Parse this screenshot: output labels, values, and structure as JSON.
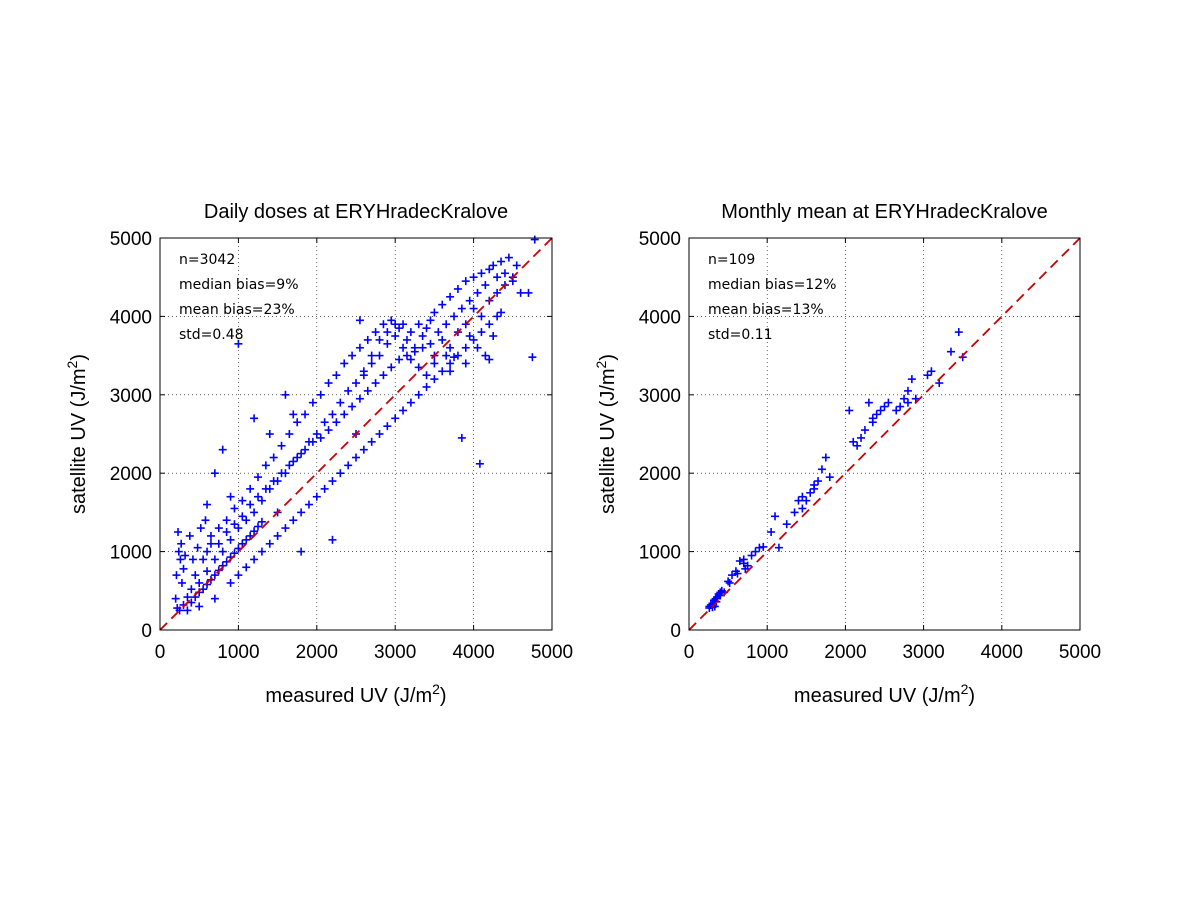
{
  "chart_data": [
    {
      "type": "scatter",
      "title": "Daily doses at ERYHradecKralove",
      "xlabel": "measured UV (J/m",
      "ylabel": "satellite UV (J/m",
      "label_superscript": "2",
      "label_close": ")",
      "xlim": [
        0,
        5000
      ],
      "ylim": [
        0,
        5000
      ],
      "xticks": [
        "0",
        "1000",
        "2000",
        "3000",
        "4000",
        "5000"
      ],
      "yticks": [
        "0",
        "1000",
        "2000",
        "3000",
        "4000",
        "5000"
      ],
      "grid": true,
      "marker": "+",
      "marker_color": "#0000ff",
      "reference_line": {
        "style": "dashed",
        "color": "#cc0000",
        "from": [
          0,
          0
        ],
        "to": [
          5000,
          5000
        ]
      },
      "stats": [
        "n=3042",
        "median bias=9%",
        "mean bias=23%",
        "std=0.48"
      ],
      "points": [
        [
          250,
          250
        ],
        [
          300,
          320
        ],
        [
          220,
          280
        ],
        [
          350,
          420
        ],
        [
          280,
          600
        ],
        [
          260,
          900
        ],
        [
          230,
          1250
        ],
        [
          300,
          780
        ],
        [
          400,
          520
        ],
        [
          450,
          700
        ],
        [
          500,
          600
        ],
        [
          550,
          900
        ],
        [
          600,
          750
        ],
        [
          650,
          1100
        ],
        [
          700,
          900
        ],
        [
          750,
          1300
        ],
        [
          800,
          1000
        ],
        [
          850,
          1400
        ],
        [
          900,
          1150
        ],
        [
          950,
          1550
        ],
        [
          1000,
          1300
        ],
        [
          1050,
          1650
        ],
        [
          1100,
          1400
        ],
        [
          1150,
          1800
        ],
        [
          1200,
          1500
        ],
        [
          1250,
          1950
        ],
        [
          1300,
          1650
        ],
        [
          1350,
          2100
        ],
        [
          1400,
          1800
        ],
        [
          1450,
          2200
        ],
        [
          1500,
          1900
        ],
        [
          1550,
          2350
        ],
        [
          1600,
          2000
        ],
        [
          1650,
          2500
        ],
        [
          1700,
          2150
        ],
        [
          1750,
          2650
        ],
        [
          1800,
          2250
        ],
        [
          1850,
          2750
        ],
        [
          1900,
          2400
        ],
        [
          1950,
          2900
        ],
        [
          2000,
          2500
        ],
        [
          2050,
          3000
        ],
        [
          2100,
          2650
        ],
        [
          2150,
          3150
        ],
        [
          2200,
          2750
        ],
        [
          2250,
          3250
        ],
        [
          2300,
          2900
        ],
        [
          2350,
          3400
        ],
        [
          2400,
          3050
        ],
        [
          2450,
          3500
        ],
        [
          2500,
          3150
        ],
        [
          2550,
          3600
        ],
        [
          2600,
          3250
        ],
        [
          2650,
          3700
        ],
        [
          2700,
          3400
        ],
        [
          2750,
          3800
        ],
        [
          2800,
          3500
        ],
        [
          2850,
          3900
        ],
        [
          2900,
          3650
        ],
        [
          2950,
          3950
        ],
        [
          3000,
          3750
        ],
        [
          3050,
          3850
        ],
        [
          3100,
          3900
        ],
        [
          3150,
          3700
        ],
        [
          3200,
          3800
        ],
        [
          3250,
          3600
        ],
        [
          3300,
          3900
        ],
        [
          3350,
          3750
        ],
        [
          3400,
          3850
        ],
        [
          3450,
          3950
        ],
        [
          3500,
          4050
        ],
        [
          3550,
          3800
        ],
        [
          3600,
          4150
        ],
        [
          3650,
          3900
        ],
        [
          3700,
          4250
        ],
        [
          3750,
          4000
        ],
        [
          3800,
          4350
        ],
        [
          3850,
          4100
        ],
        [
          3900,
          4450
        ],
        [
          3950,
          4200
        ],
        [
          4000,
          4500
        ],
        [
          4050,
          4300
        ],
        [
          4100,
          4550
        ],
        [
          4150,
          4400
        ],
        [
          4200,
          4600
        ],
        [
          4250,
          4650
        ],
        [
          4300,
          4500
        ],
        [
          4350,
          4700
        ],
        [
          4400,
          4550
        ],
        [
          4450,
          4750
        ],
        [
          4500,
          4450
        ],
        [
          4550,
          4650
        ],
        [
          4600,
          4300
        ],
        [
          4700,
          4300
        ],
        [
          4780,
          4980
        ],
        [
          4750,
          3480
        ],
        [
          4080,
          2120
        ],
        [
          3850,
          2450
        ],
        [
          2550,
          3950
        ],
        [
          1000,
          3650
        ],
        [
          600,
          1600
        ],
        [
          700,
          2000
        ],
        [
          800,
          2300
        ],
        [
          900,
          1700
        ],
        [
          1200,
          2700
        ],
        [
          1400,
          2500
        ],
        [
          1600,
          3000
        ],
        [
          1700,
          2750
        ],
        [
          1800,
          1000
        ],
        [
          2200,
          1150
        ],
        [
          1000,
          700
        ],
        [
          1200,
          900
        ],
        [
          1400,
          1100
        ],
        [
          1600,
          1300
        ],
        [
          1800,
          1500
        ],
        [
          2000,
          1700
        ],
        [
          2200,
          1900
        ],
        [
          2400,
          2100
        ],
        [
          2600,
          2300
        ],
        [
          2800,
          2500
        ],
        [
          3000,
          2700
        ],
        [
          3200,
          2900
        ],
        [
          3400,
          3100
        ],
        [
          3600,
          3300
        ],
        [
          3800,
          3500
        ],
        [
          4000,
          3700
        ],
        [
          4200,
          3900
        ],
        [
          1500,
          1500
        ],
        [
          2500,
          2500
        ],
        [
          3500,
          3500
        ],
        [
          500,
          300
        ],
        [
          700,
          400
        ],
        [
          900,
          600
        ],
        [
          1100,
          800
        ],
        [
          1300,
          1000
        ],
        [
          1500,
          1200
        ],
        [
          1700,
          1400
        ],
        [
          1900,
          1600
        ],
        [
          2100,
          1800
        ],
        [
          2300,
          2000
        ],
        [
          2500,
          2200
        ],
        [
          2700,
          2400
        ],
        [
          2900,
          2600
        ],
        [
          3100,
          2800
        ],
        [
          3300,
          3000
        ],
        [
          3500,
          3200
        ],
        [
          3700,
          3400
        ],
        [
          3900,
          3600
        ],
        [
          4100,
          3800
        ],
        [
          4300,
          4000
        ],
        [
          600,
          1000
        ],
        [
          650,
          1200
        ],
        [
          750,
          1100
        ],
        [
          850,
          1250
        ],
        [
          950,
          1350
        ],
        [
          1050,
          1450
        ],
        [
          1150,
          1600
        ],
        [
          1250,
          1700
        ],
        [
          1350,
          1800
        ],
        [
          1450,
          1900
        ],
        [
          1550,
          2000
        ],
        [
          1650,
          2100
        ],
        [
          1750,
          2200
        ],
        [
          1850,
          2300
        ],
        [
          1950,
          2400
        ],
        [
          2050,
          2450
        ],
        [
          2150,
          2550
        ],
        [
          2250,
          2650
        ],
        [
          2350,
          2750
        ],
        [
          2450,
          2850
        ],
        [
          2550,
          2950
        ],
        [
          2650,
          3050
        ],
        [
          2750,
          3150
        ],
        [
          2850,
          3250
        ],
        [
          2950,
          3350
        ],
        [
          3050,
          3450
        ],
        [
          3150,
          3500
        ],
        [
          3250,
          3550
        ],
        [
          3350,
          3600
        ],
        [
          3450,
          3650
        ],
        [
          200,
          400
        ],
        [
          210,
          700
        ],
        [
          240,
          1000
        ],
        [
          270,
          1100
        ],
        [
          320,
          950
        ],
        [
          380,
          1200
        ],
        [
          420,
          900
        ],
        [
          480,
          1050
        ],
        [
          520,
          1300
        ],
        [
          580,
          1400
        ],
        [
          350,
          250
        ],
        [
          400,
          350
        ],
        [
          450,
          420
        ],
        [
          500,
          480
        ],
        [
          550,
          520
        ],
        [
          600,
          580
        ],
        [
          650,
          640
        ],
        [
          700,
          700
        ],
        [
          750,
          760
        ],
        [
          800,
          820
        ],
        [
          850,
          870
        ],
        [
          900,
          930
        ],
        [
          950,
          980
        ],
        [
          1000,
          1040
        ],
        [
          1050,
          1100
        ],
        [
          1100,
          1150
        ],
        [
          1150,
          1200
        ],
        [
          1200,
          1260
        ],
        [
          1250,
          1320
        ],
        [
          1300,
          1380
        ],
        [
          2600,
          3300
        ],
        [
          2700,
          3500
        ],
        [
          2800,
          3700
        ],
        [
          2900,
          3800
        ],
        [
          3000,
          3900
        ],
        [
          3100,
          3600
        ],
        [
          3200,
          3450
        ],
        [
          3300,
          3350
        ],
        [
          3400,
          3250
        ],
        [
          3500,
          3400
        ],
        [
          3600,
          3700
        ],
        [
          3700,
          3600
        ],
        [
          3800,
          3800
        ],
        [
          3900,
          3900
        ],
        [
          4000,
          4100
        ],
        [
          4100,
          4000
        ],
        [
          4200,
          4200
        ],
        [
          4300,
          4300
        ],
        [
          4400,
          4400
        ],
        [
          4500,
          4500
        ],
        [
          3750,
          3480
        ],
        [
          3700,
          3300
        ],
        [
          3650,
          3500
        ],
        [
          3900,
          3400
        ],
        [
          4150,
          3500
        ],
        [
          4200,
          3450
        ],
        [
          4050,
          3600
        ],
        [
          3950,
          3750
        ],
        [
          4250,
          3750
        ],
        [
          4350,
          4050
        ]
      ]
    },
    {
      "type": "scatter",
      "title": "Monthly mean at ERYHradecKralove",
      "xlabel": "measured UV (J/m",
      "ylabel": "satellite UV (J/m",
      "label_superscript": "2",
      "label_close": ")",
      "xlim": [
        0,
        5000
      ],
      "ylim": [
        0,
        5000
      ],
      "xticks": [
        "0",
        "1000",
        "2000",
        "3000",
        "4000",
        "5000"
      ],
      "yticks": [
        "0",
        "1000",
        "2000",
        "3000",
        "4000",
        "5000"
      ],
      "grid": true,
      "marker": "+",
      "marker_color": "#0000ff",
      "reference_line": {
        "style": "dashed",
        "color": "#cc0000",
        "from": [
          0,
          0
        ],
        "to": [
          5000,
          5000
        ]
      },
      "stats": [
        "n=109",
        "median bias=12%",
        "mean bias=13%",
        "std=0.11"
      ],
      "points": [
        [
          260,
          280
        ],
        [
          280,
          320
        ],
        [
          300,
          340
        ],
        [
          320,
          380
        ],
        [
          340,
          400
        ],
        [
          360,
          420
        ],
        [
          380,
          460
        ],
        [
          400,
          440
        ],
        [
          300,
          290
        ],
        [
          350,
          360
        ],
        [
          420,
          500
        ],
        [
          450,
          480
        ],
        [
          500,
          620
        ],
        [
          520,
          600
        ],
        [
          550,
          700
        ],
        [
          600,
          750
        ],
        [
          620,
          720
        ],
        [
          650,
          880
        ],
        [
          700,
          900
        ],
        [
          720,
          780
        ],
        [
          750,
          820
        ],
        [
          800,
          950
        ],
        [
          850,
          1000
        ],
        [
          900,
          1050
        ],
        [
          950,
          1060
        ],
        [
          1050,
          1250
        ],
        [
          1100,
          1450
        ],
        [
          1150,
          1050
        ],
        [
          1350,
          1500
        ],
        [
          1400,
          1650
        ],
        [
          1450,
          1550
        ],
        [
          1500,
          1650
        ],
        [
          1550,
          1750
        ],
        [
          1600,
          1800
        ],
        [
          1650,
          1900
        ],
        [
          1700,
          2050
        ],
        [
          1750,
          2200
        ],
        [
          1800,
          1950
        ],
        [
          2050,
          2800
        ],
        [
          2100,
          2400
        ],
        [
          2150,
          2350
        ],
        [
          2200,
          2450
        ],
        [
          2250,
          2550
        ],
        [
          2300,
          2900
        ],
        [
          2350,
          2650
        ],
        [
          2400,
          2750
        ],
        [
          2450,
          2800
        ],
        [
          2500,
          2850
        ],
        [
          2550,
          2900
        ],
        [
          2650,
          2800
        ],
        [
          2700,
          2850
        ],
        [
          2750,
          2950
        ],
        [
          2800,
          3050
        ],
        [
          2850,
          3200
        ],
        [
          2900,
          2950
        ],
        [
          3050,
          3250
        ],
        [
          3100,
          3300
        ],
        [
          3200,
          3150
        ],
        [
          3350,
          3550
        ],
        [
          3450,
          3800
        ],
        [
          3500,
          3480
        ],
        [
          2800,
          2900
        ],
        [
          1600,
          1850
        ],
        [
          1450,
          1700
        ],
        [
          700,
          850
        ],
        [
          400,
          480
        ],
        [
          330,
          300
        ],
        [
          260,
          300
        ],
        [
          1250,
          1350
        ],
        [
          2350,
          2700
        ]
      ]
    }
  ]
}
